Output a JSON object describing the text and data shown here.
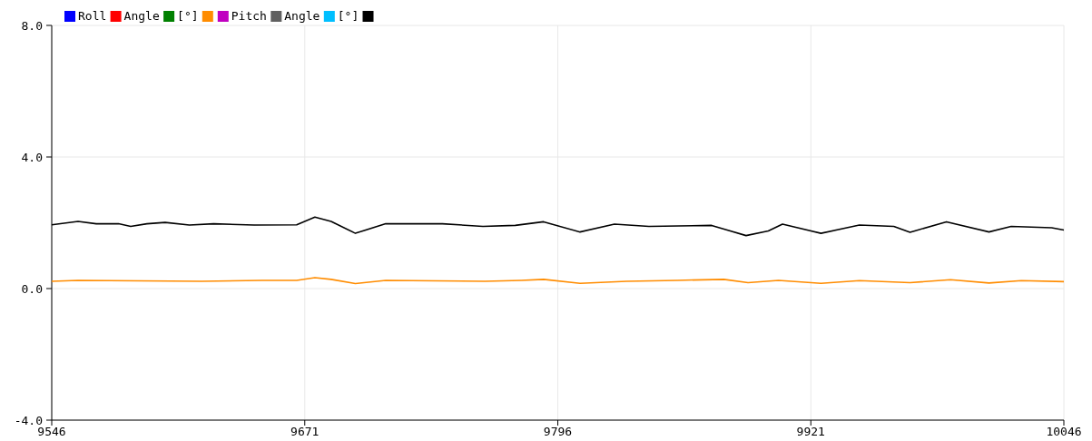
{
  "chart_data": {
    "type": "line",
    "xlim": [
      9546,
      10046
    ],
    "xticks": [
      9546,
      9671,
      9796,
      9921,
      10046
    ],
    "ylim": [
      -4,
      8
    ],
    "yticks": [
      {
        "value": -4,
        "label": "-4.0"
      },
      {
        "value": 0,
        "label": "0.0"
      },
      {
        "value": 4,
        "label": "4.0"
      },
      {
        "value": 8,
        "label": "8.0"
      }
    ],
    "grid": true,
    "legend": "top left",
    "series": [
      {
        "name": "Roll",
        "color": "#0000ff"
      },
      {
        "name": "Angle",
        "color": "#ff0000"
      },
      {
        "name": "[°]",
        "color": "#008000"
      },
      {
        "color": "#ff8c00",
        "x": [
          9546,
          9559,
          9620,
          9650,
          9667,
          9676,
          9684,
          9696,
          9711,
          9760,
          9778,
          9789,
          9807,
          9830,
          9855,
          9878,
          9890,
          9905,
          9926,
          9945,
          9970,
          9990,
          10009,
          10025,
          10046
        ],
        "values": [
          0.22,
          0.25,
          0.22,
          0.25,
          0.25,
          0.33,
          0.28,
          0.15,
          0.25,
          0.22,
          0.25,
          0.28,
          0.16,
          0.22,
          0.25,
          0.28,
          0.18,
          0.25,
          0.16,
          0.24,
          0.18,
          0.27,
          0.17,
          0.24,
          0.21
        ]
      },
      {
        "name": "Pitch",
        "color": "#c000c0"
      },
      {
        "name": "Angle",
        "color": "#606060"
      },
      {
        "name": "[°]",
        "color": "#00bfff"
      },
      {
        "color": "#000000",
        "x": [
          9546,
          9559,
          9568,
          9579,
          9585,
          9593,
          9602,
          9614,
          9626,
          9646,
          9667,
          9676,
          9684,
          9696,
          9711,
          9739,
          9759,
          9775,
          9789,
          9807,
          9824,
          9841,
          9872,
          9889,
          9900,
          9907,
          9926,
          9945,
          9962,
          9970,
          9988,
          10009,
          10020,
          10040,
          10046
        ],
        "values": [
          1.94,
          2.04,
          1.97,
          1.97,
          1.89,
          1.97,
          2.01,
          1.93,
          1.97,
          1.93,
          1.94,
          2.17,
          2.04,
          1.68,
          1.97,
          1.97,
          1.89,
          1.92,
          2.03,
          1.72,
          1.96,
          1.89,
          1.92,
          1.61,
          1.75,
          1.96,
          1.68,
          1.93,
          1.89,
          1.71,
          2.03,
          1.72,
          1.89,
          1.85,
          1.78
        ]
      }
    ]
  }
}
